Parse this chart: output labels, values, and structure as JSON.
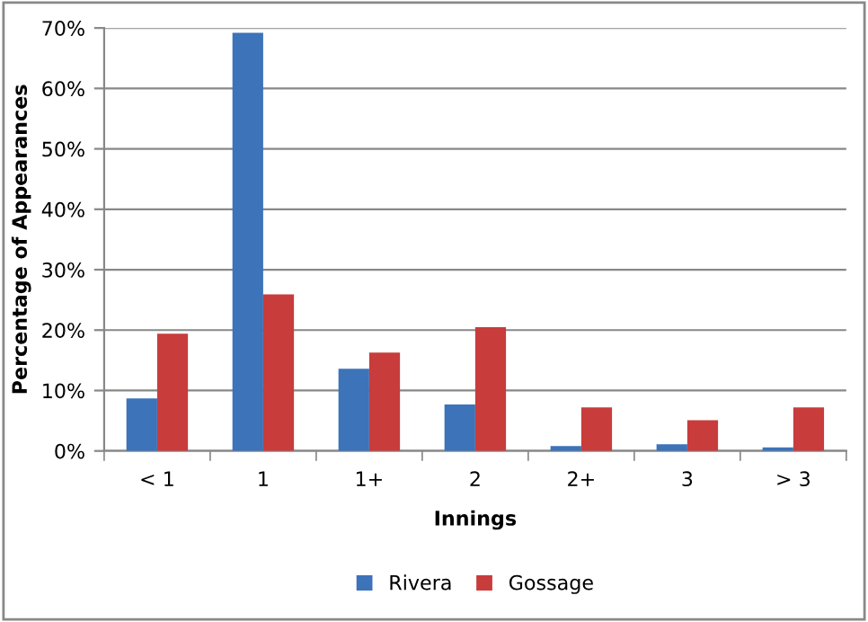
{
  "chart_data": {
    "type": "bar",
    "xlabel": "Innings",
    "ylabel": "Percentage of Appearances",
    "categories": [
      "< 1",
      "1",
      "1+",
      "2",
      "2+",
      "3",
      "> 3"
    ],
    "series": [
      {
        "name": "Rivera",
        "color": "#3c73b9",
        "values": [
          8.7,
          69.2,
          13.6,
          7.7,
          0.8,
          1.1,
          0.6
        ]
      },
      {
        "name": "Gossage",
        "color": "#c83c3c",
        "values": [
          19.4,
          25.9,
          16.3,
          20.5,
          7.2,
          5.1,
          7.2
        ]
      }
    ],
    "ylim": [
      0,
      70
    ],
    "yticks": [
      {
        "value": 0,
        "label": "0%"
      },
      {
        "value": 10,
        "label": "10%"
      },
      {
        "value": 20,
        "label": "20%"
      },
      {
        "value": 30,
        "label": "30%"
      },
      {
        "value": 40,
        "label": "40%"
      },
      {
        "value": 50,
        "label": "50%"
      },
      {
        "value": 60,
        "label": "60%"
      },
      {
        "value": 70,
        "label": "70%"
      }
    ],
    "grid": "y",
    "legend": "bottom"
  }
}
